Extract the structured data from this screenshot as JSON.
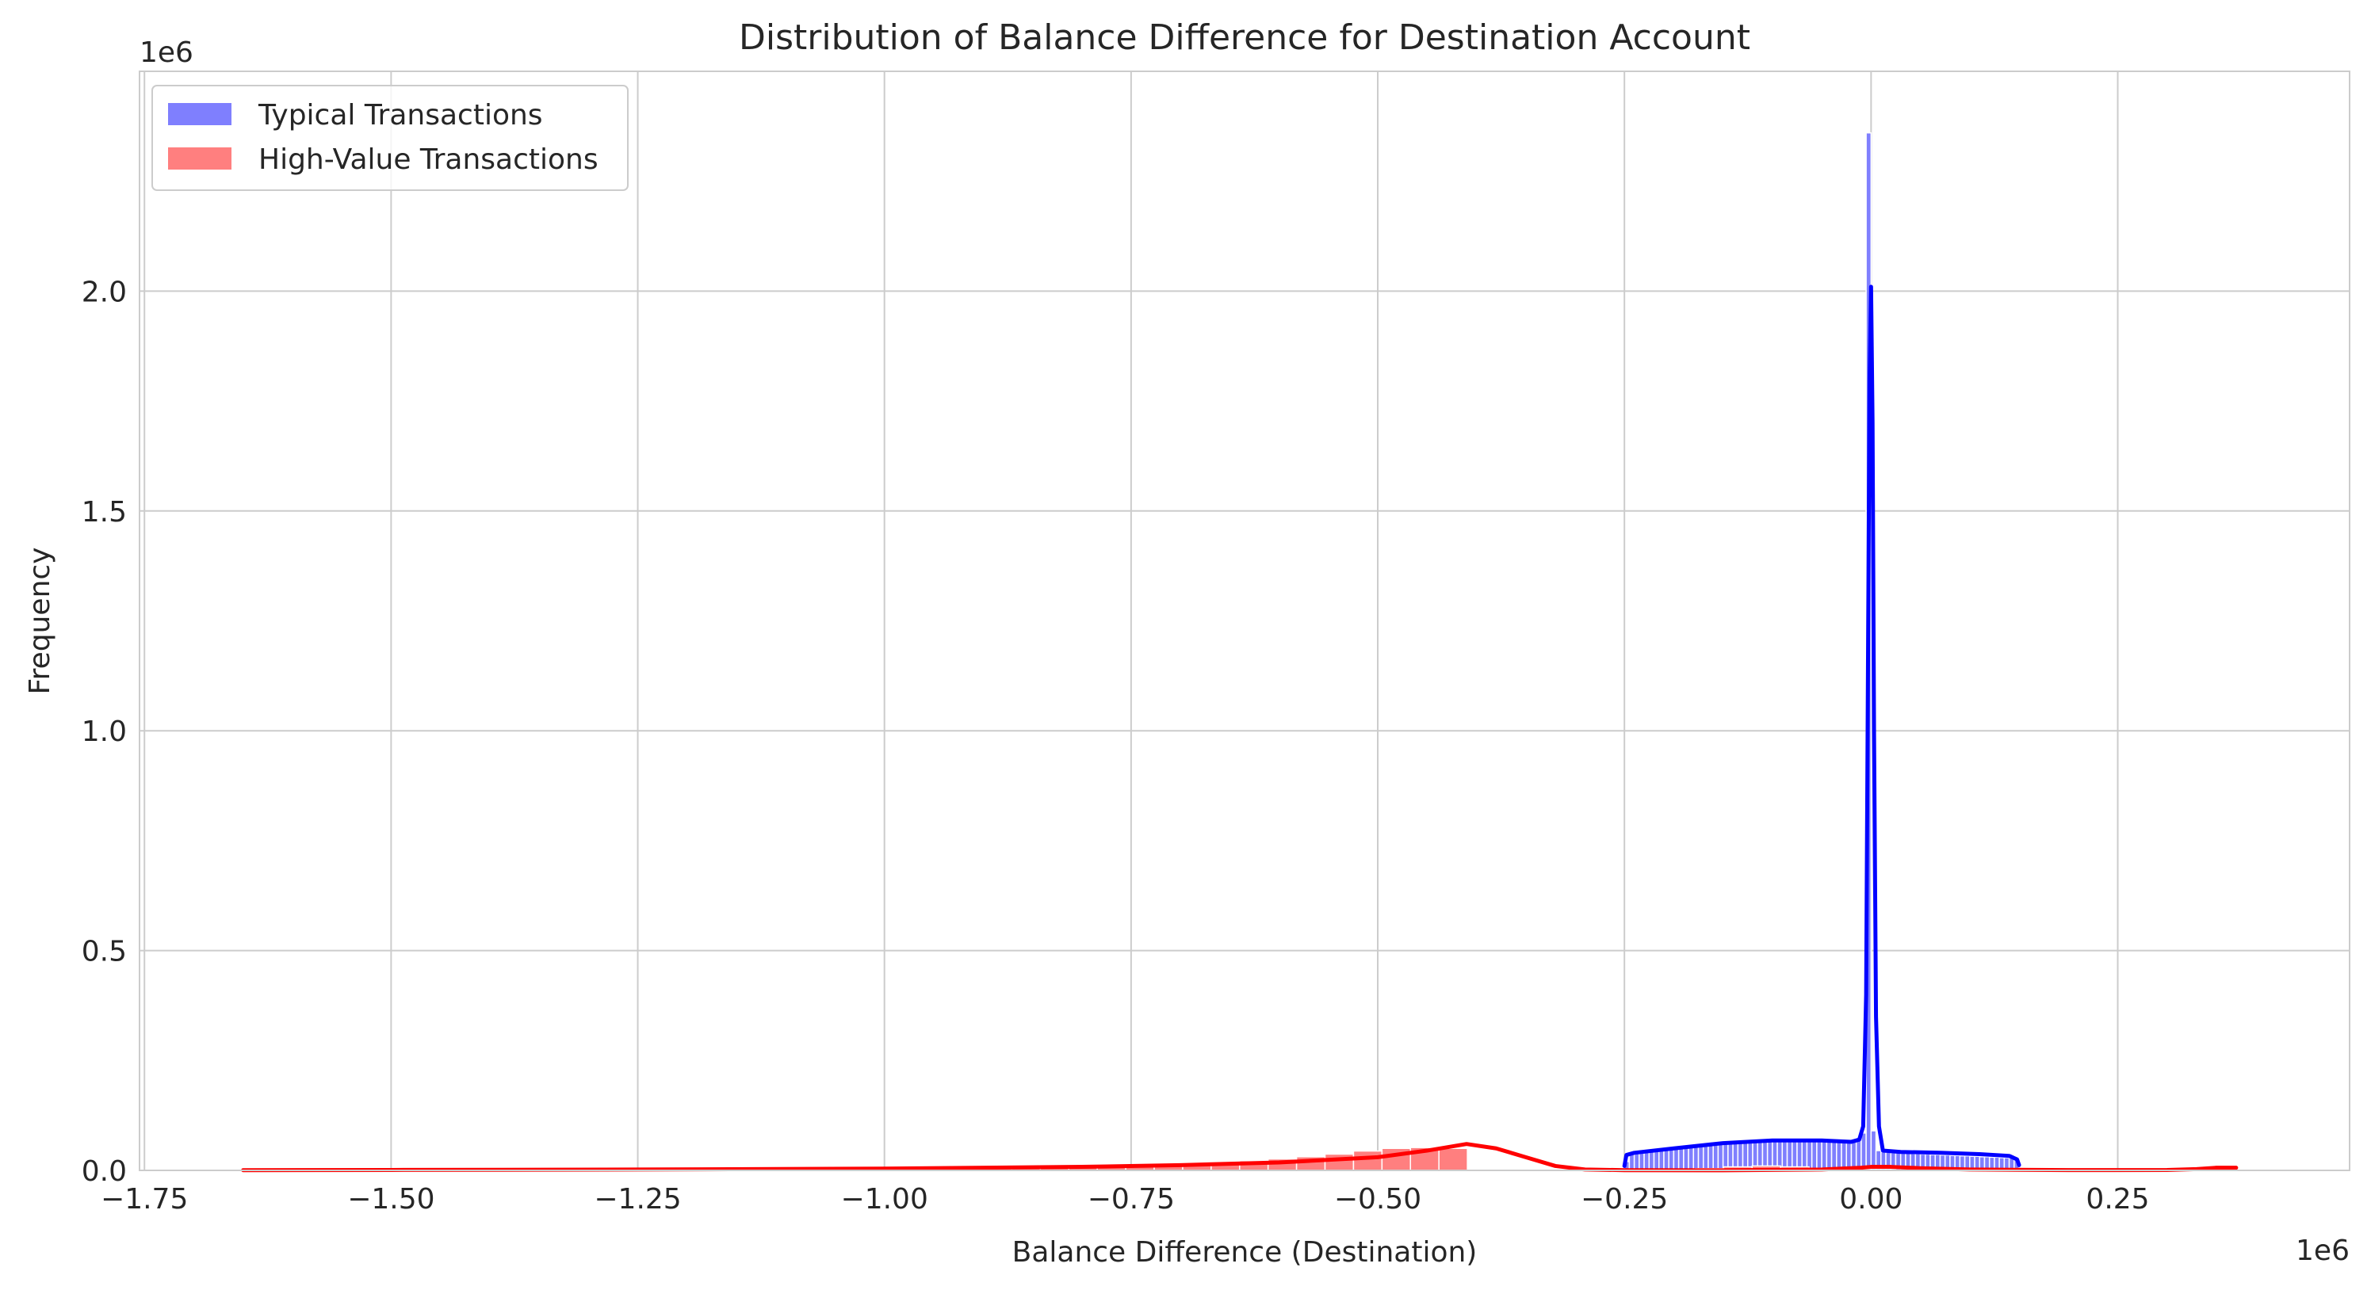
{
  "chart_data": {
    "type": "histogram",
    "title": "Distribution of Balance Difference for Destination Account",
    "xlabel": "Balance Difference (Destination)",
    "ylabel": "Frequency",
    "x_offset_label": "1e6",
    "y_offset_label": "1e6",
    "xlim": [
      -1.755,
      0.485
    ],
    "ylim": [
      0,
      2.5
    ],
    "x_ticks": [
      -1.75,
      -1.5,
      -1.25,
      -1.0,
      -0.75,
      -0.5,
      -0.25,
      0.0,
      0.25
    ],
    "x_tick_labels": [
      "−1.75",
      "−1.50",
      "−1.25",
      "−1.00",
      "−0.75",
      "−0.50",
      "−0.25",
      "0.00",
      "0.25"
    ],
    "y_ticks": [
      0.0,
      0.5,
      1.0,
      1.5,
      2.0
    ],
    "y_tick_labels": [
      "0.0",
      "0.5",
      "1.0",
      "1.5",
      "2.0"
    ],
    "grid": true,
    "legend_position": "top-left",
    "series": [
      {
        "name": "Typical Transactions",
        "bar_color": "#7f7ffe",
        "kde_color": "#0000ff",
        "bins": {
          "start": -0.25,
          "end": 0.15,
          "count": 80,
          "values": [
            0.02,
            0.04,
            0.045,
            0.047,
            0.048,
            0.049,
            0.05,
            0.051,
            0.052,
            0.053,
            0.054,
            0.055,
            0.056,
            0.056,
            0.057,
            0.058,
            0.059,
            0.06,
            0.061,
            0.062,
            0.063,
            0.063,
            0.064,
            0.065,
            0.066,
            0.066,
            0.067,
            0.067,
            0.068,
            0.068,
            0.069,
            0.069,
            0.069,
            0.07,
            0.07,
            0.07,
            0.07,
            0.07,
            0.07,
            0.069,
            0.069,
            0.068,
            0.068,
            0.067,
            0.067,
            0.066,
            0.066,
            0.07,
            0.085,
            2.36,
            0.09,
            0.045,
            0.042,
            0.041,
            0.04,
            0.04,
            0.039,
            0.039,
            0.038,
            0.038,
            0.037,
            0.037,
            0.036,
            0.036,
            0.035,
            0.035,
            0.034,
            0.034,
            0.033,
            0.033,
            0.032,
            0.032,
            0.031,
            0.031,
            0.03,
            0.03,
            0.029,
            0.029,
            0.028,
            0.025
          ]
        },
        "kde": {
          "x": [
            -0.25,
            -0.248,
            -0.24,
            -0.2,
            -0.15,
            -0.1,
            -0.05,
            -0.02,
            -0.012,
            -0.008,
            -0.005,
            -0.003,
            -0.0015,
            0.0,
            0.0015,
            0.003,
            0.005,
            0.008,
            0.012,
            0.03,
            0.07,
            0.11,
            0.14,
            0.148,
            0.15
          ],
          "y": [
            0.01,
            0.035,
            0.04,
            0.05,
            0.062,
            0.068,
            0.068,
            0.065,
            0.07,
            0.1,
            0.4,
            1.2,
            1.8,
            2.01,
            1.7,
            1.0,
            0.35,
            0.1,
            0.045,
            0.042,
            0.04,
            0.037,
            0.033,
            0.025,
            0.012
          ]
        }
      },
      {
        "name": "High-Value Transactions",
        "bar_color": "#ff7f7f",
        "kde_color": "#ff0000",
        "bins": {
          "start": -1.65,
          "end": 0.37,
          "count": 70,
          "values": [
            0.001,
            0.001,
            0.001,
            0.001,
            0.001,
            0.001,
            0.0015,
            0.0015,
            0.0015,
            0.002,
            0.002,
            0.002,
            0.002,
            0.0025,
            0.0025,
            0.0025,
            0.003,
            0.003,
            0.003,
            0.0035,
            0.0035,
            0.004,
            0.004,
            0.0045,
            0.005,
            0.0055,
            0.006,
            0.007,
            0.008,
            0.009,
            0.01,
            0.012,
            0.014,
            0.016,
            0.019,
            0.022,
            0.026,
            0.031,
            0.037,
            0.044,
            0.05,
            0.052,
            0.05,
            0,
            0,
            0,
            0,
            0,
            0,
            0,
            0,
            0.004,
            0.008,
            0.01,
            0.008,
            0.005,
            0.003,
            0.002,
            0.001,
            0.001,
            0.0005,
            0.0005,
            0.0005,
            0.0005,
            0.0005,
            0.0005,
            0.0005,
            0.001,
            0.004,
            0.006
          ]
        },
        "kde": {
          "x": [
            -1.65,
            -1.5,
            -1.25,
            -1.0,
            -0.8,
            -0.7,
            -0.6,
            -0.5,
            -0.45,
            -0.41,
            -0.38,
            -0.35,
            -0.32,
            -0.29,
            -0.25,
            -0.15,
            -0.05,
            -0.01,
            0.0,
            0.02,
            0.05,
            0.1,
            0.2,
            0.3,
            0.33,
            0.35,
            0.37
          ],
          "y": [
            0.0005,
            0.001,
            0.002,
            0.004,
            0.008,
            0.012,
            0.018,
            0.03,
            0.045,
            0.06,
            0.05,
            0.03,
            0.01,
            0.002,
            0.0005,
            0.0003,
            0.002,
            0.006,
            0.008,
            0.008,
            0.005,
            0.002,
            0.0006,
            0.001,
            0.003,
            0.006,
            0.006
          ]
        }
      }
    ]
  }
}
